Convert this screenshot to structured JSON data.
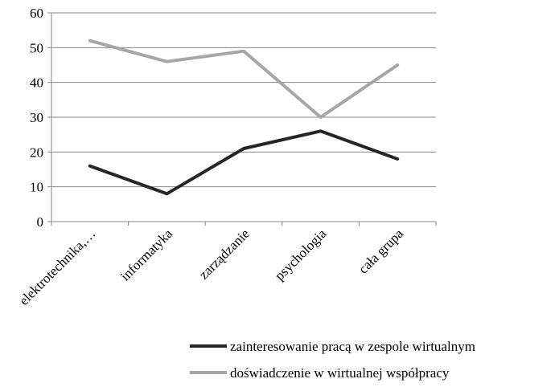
{
  "chart_data": {
    "type": "line",
    "categories": [
      "elektrotechnika,…",
      "informatyka",
      "zarządzanie",
      "psychologia",
      "cała grupa"
    ],
    "series": [
      {
        "name": "zainteresowanie pracą w zespole wirtualnym",
        "values": [
          16,
          8,
          21,
          26,
          18
        ],
        "color": "#262626"
      },
      {
        "name": "doświadczenie w wirtualnej współpracy",
        "values": [
          52,
          46,
          49,
          30,
          45
        ],
        "color": "#a6a6a6"
      }
    ],
    "ylim": [
      0,
      60
    ],
    "yticks": [
      0,
      10,
      20,
      30,
      40,
      50,
      60
    ],
    "grid": true,
    "legend_position": "bottom-right",
    "title": "",
    "xlabel": "",
    "ylabel": ""
  }
}
